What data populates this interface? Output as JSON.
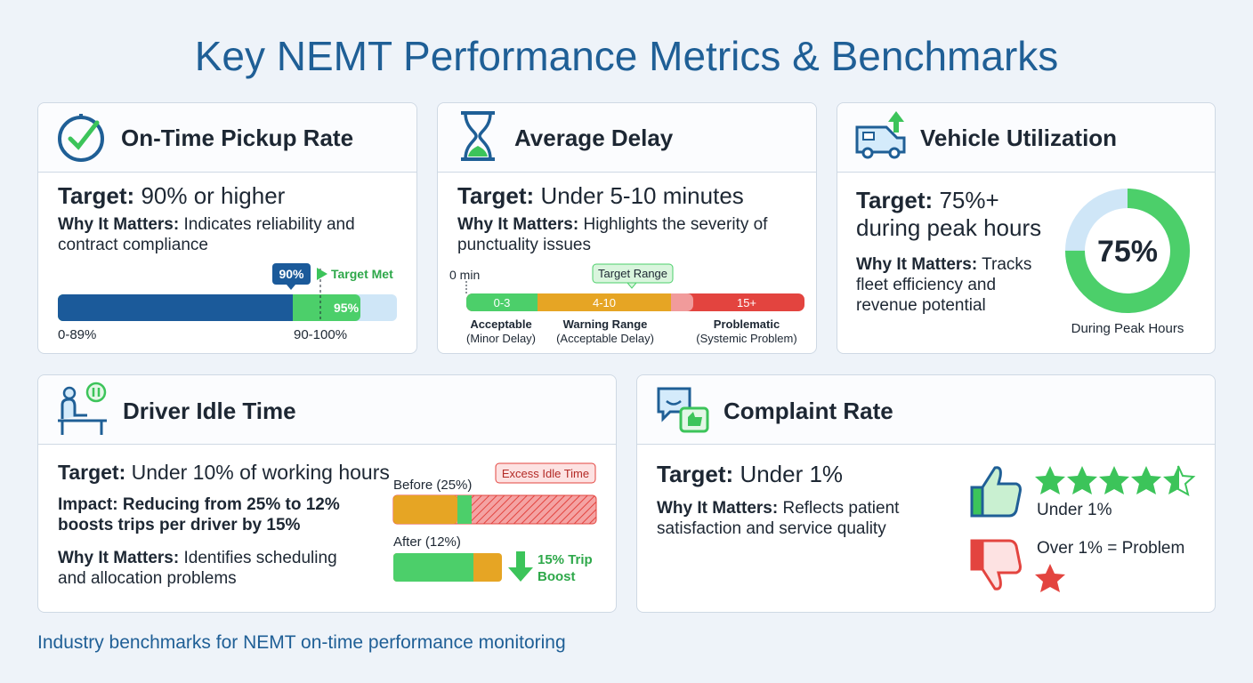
{
  "header": {
    "title": "Key NEMT Performance Metrics & Benchmarks"
  },
  "cards": [
    {
      "title": "On-Time Pickup Rate",
      "target_label": "Target:",
      "target": "90% or higher",
      "why_label": "Why It Matters:",
      "why": "Indicates reliability and contract compliance",
      "gauge": {
        "marker": "90%",
        "status": "Target Met",
        "fill_label": "95%",
        "left_label": "0-89%",
        "right_label": "90-100%"
      }
    },
    {
      "title": "Average Delay",
      "target_label": "Target:",
      "target": "Under 5-10 minutes",
      "why_label": "Why It Matters:",
      "why": "Highlights the severity of punctuality issues",
      "scale": {
        "start": "0 min",
        "callout": "Target Range",
        "segments": [
          "0-3",
          "4-10",
          "15+"
        ],
        "zones": [
          {
            "name": "Acceptable",
            "note": "(Minor Delay)"
          },
          {
            "name": "Warning Range",
            "note": "(Acceptable Delay)"
          },
          {
            "name": "Problematic",
            "note": "(Systemic Problem)"
          }
        ]
      }
    },
    {
      "title": "Vehicle Utilization",
      "target_label": "Target:",
      "target": "75%+ during peak hours",
      "why_label": "Why It Matters:",
      "why": "Tracks fleet efficiency and revenue potential",
      "donut": {
        "label": "75%",
        "caption": "During Peak Hours"
      }
    },
    {
      "title": "Driver Idle Time",
      "target_label": "Target:",
      "target": "Under 10% of working hours",
      "impact": "Impact: Reducing from 25% to 12% boosts trips per driver by 15%",
      "why_label": "Why It Matters:",
      "why": "Identifies scheduling and allocation problems",
      "comparison": {
        "before": "Before",
        "before_value": "(25%)",
        "excess": "Excess Idle Time",
        "after": "After",
        "after_value": "(12%)",
        "boost": "15% Trip Boost"
      }
    },
    {
      "title": "Complaint Rate",
      "target_label": "Target:",
      "target": "Under 1%",
      "why_label": "Why It Matters:",
      "why": "Reflects patient satisfaction and service quality",
      "ratings": {
        "good": "Under 1%",
        "bad": "Over 1% = Problem"
      }
    }
  ],
  "footer": "Industry benchmarks for NEMT on-time performance monitoring"
}
